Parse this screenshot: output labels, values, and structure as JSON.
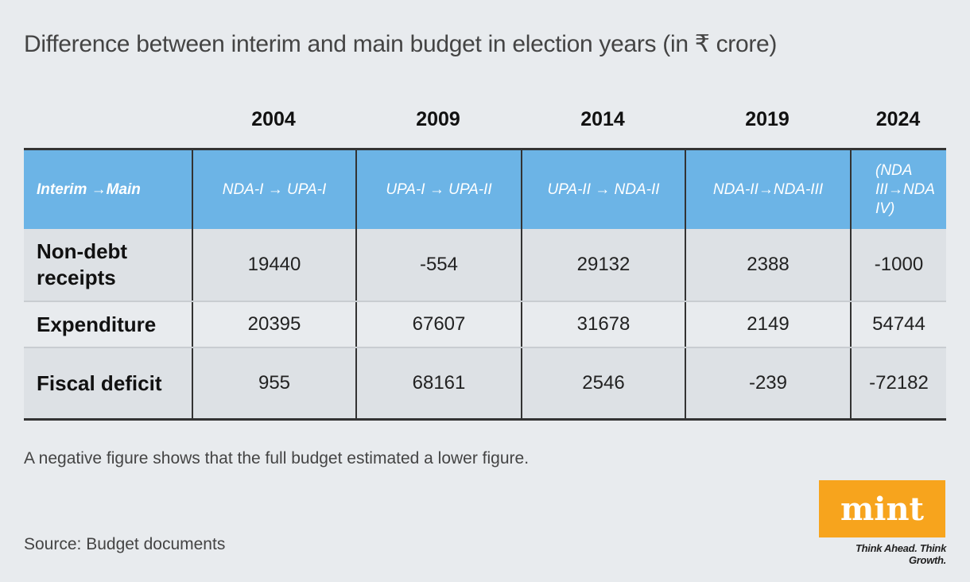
{
  "title": "Difference between interim and main budget in election years (in ₹ crore)",
  "chart_data": {
    "type": "table",
    "columns": [
      "2004",
      "2009",
      "2014",
      "2019",
      "2024"
    ],
    "header_row": {
      "label": "Interim →Main",
      "values": [
        "NDA-I → UPA-I",
        "UPA-I → UPA-II",
        "UPA-II → NDA-II",
        "NDA-II→NDA-III",
        "(NDA III→NDA IV)"
      ]
    },
    "rows": [
      {
        "label": "Non-debt receipts",
        "values": [
          19440,
          -554,
          29132,
          2388,
          -1000
        ]
      },
      {
        "label": "Expenditure",
        "values": [
          20395,
          67607,
          31678,
          2149,
          54744
        ]
      },
      {
        "label": "Fiscal deficit",
        "values": [
          955,
          68161,
          2546,
          -239,
          -72182
        ]
      }
    ]
  },
  "note": "A negative figure shows that the full budget estimated a lower figure.",
  "source": "Source: Budget documents",
  "logo": {
    "text": "mint",
    "tagline": "Think Ahead. Think Growth.",
    "color": "#f7a41d"
  },
  "colors": {
    "header_fill": "#6cb4e6",
    "background": "#e8ebee"
  }
}
